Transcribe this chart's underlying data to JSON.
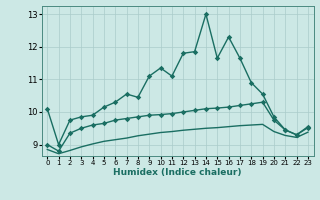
{
  "xlabel": "Humidex (Indice chaleur)",
  "x": [
    0,
    1,
    2,
    3,
    4,
    5,
    6,
    7,
    8,
    9,
    10,
    11,
    12,
    13,
    14,
    15,
    16,
    17,
    18,
    19,
    20,
    21,
    22,
    23
  ],
  "line_top": [
    10.1,
    9.0,
    9.75,
    9.85,
    9.9,
    10.15,
    10.3,
    10.55,
    10.45,
    11.1,
    11.35,
    11.1,
    11.8,
    11.85,
    13.0,
    11.65,
    12.3,
    11.65,
    10.9,
    10.55,
    9.85,
    9.45,
    9.3,
    9.55
  ],
  "line_upper": [
    9.0,
    8.8,
    9.35,
    9.5,
    9.6,
    9.65,
    9.75,
    9.8,
    9.85,
    9.9,
    9.92,
    9.95,
    10.0,
    10.05,
    10.1,
    10.12,
    10.15,
    10.2,
    10.25,
    10.3,
    9.75,
    9.45,
    9.3,
    9.52
  ],
  "line_lower": [
    8.85,
    8.72,
    8.82,
    8.93,
    9.02,
    9.1,
    9.15,
    9.2,
    9.27,
    9.32,
    9.37,
    9.4,
    9.44,
    9.47,
    9.5,
    9.52,
    9.55,
    9.58,
    9.6,
    9.62,
    9.4,
    9.28,
    9.22,
    9.38
  ],
  "ylim": [
    8.65,
    13.25
  ],
  "yticks": [
    9,
    10,
    11,
    12,
    13
  ],
  "bg_color": "#cce8e5",
  "grid_color": "#aaccca",
  "line_color": "#1a6e62",
  "markersize": 2.8,
  "linewidth": 1.0
}
